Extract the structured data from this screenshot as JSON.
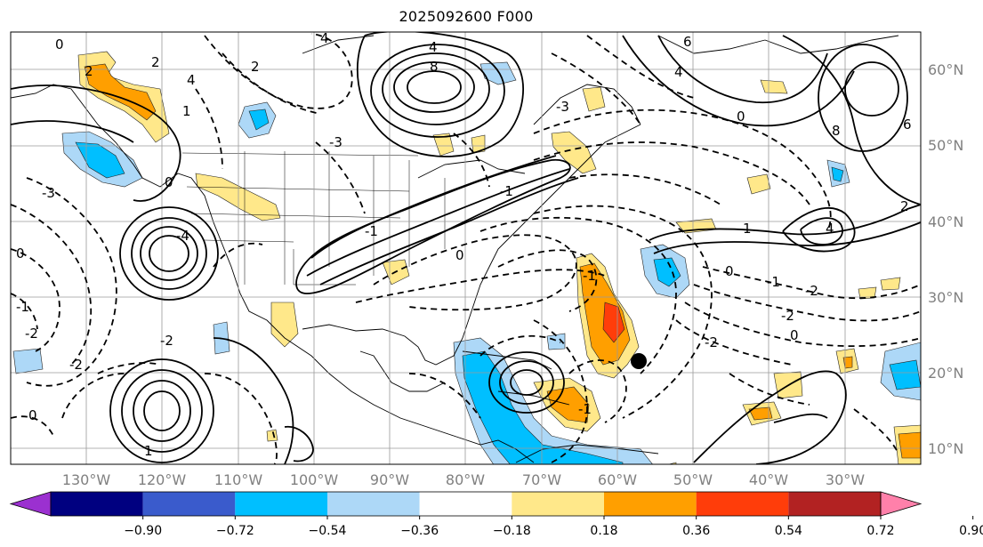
{
  "title": "2025092600 F000",
  "axes": {
    "lon_labels": [
      "130°W",
      "120°W",
      "110°W",
      "100°W",
      "90°W",
      "80°W",
      "70°W",
      "60°W",
      "50°W",
      "40°W",
      "30°W"
    ],
    "lat_labels": [
      "60°N",
      "50°N",
      "40°N",
      "30°N",
      "20°N",
      "10°N"
    ]
  },
  "contour_labels": [
    "0",
    "2",
    "2",
    "4",
    "4",
    "2",
    "1",
    "0",
    "4",
    "8",
    "6",
    "4",
    "0",
    "8",
    "6",
    "4",
    "2",
    "1",
    "0",
    "-1",
    "-2",
    "-3",
    "-1",
    "0",
    "-1",
    "-2",
    "-2",
    "-1",
    "-2",
    "-2",
    "-1",
    "0",
    "1",
    "-3",
    "-4",
    "-1",
    "-3",
    "-2",
    "0",
    "0"
  ],
  "colorbar": {
    "ticks": [
      "−0.90",
      "−0.72",
      "−0.54",
      "−0.36",
      "−0.18",
      "0.18",
      "0.36",
      "0.54",
      "0.72",
      "0.90"
    ],
    "colors": [
      "#9b30d0",
      "#000080",
      "#3a5bcc",
      "#00bfff",
      "#add8f7",
      "#ffffff",
      "#ffe88a",
      "#ff9f00",
      "#ff3d0a",
      "#b22222",
      "#ff80aa"
    ]
  },
  "marker": "storm-position-dot"
}
